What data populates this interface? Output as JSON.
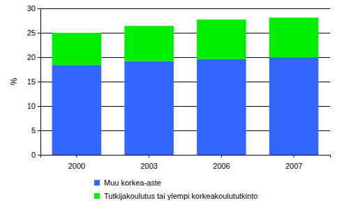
{
  "chart_data": {
    "type": "bar",
    "stacked": true,
    "grid": true,
    "y_label": "%",
    "categories": [
      "2000",
      "2003",
      "2006",
      "2007"
    ],
    "series": [
      {
        "name": "Muu korkea-aste",
        "color": "#3366ff",
        "values": [
          18.4,
          19.2,
          19.6,
          19.9
        ]
      },
      {
        "name": "Tutkijakoulutus tai ylempi korkeakoulututkinto",
        "color": "#00ee00",
        "values": [
          6.6,
          7.2,
          8.1,
          8.2
        ]
      }
    ],
    "ylim": [
      0,
      30
    ],
    "yticks": [
      0,
      5,
      10,
      15,
      20,
      25,
      30
    ]
  }
}
